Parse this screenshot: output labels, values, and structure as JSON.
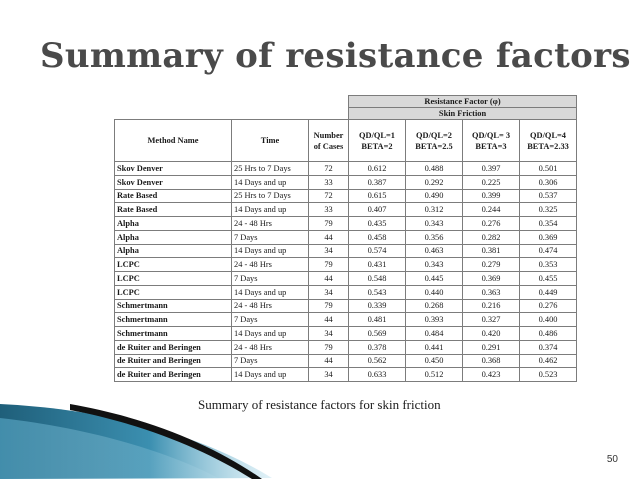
{
  "slide": {
    "title": "Summary of resistance factors",
    "caption": "Summary of resistance factors for skin friction",
    "page_number": "50"
  },
  "colors": {
    "title": "#4a4a4a",
    "header_fill": "#d9d9d9",
    "swoosh_dark": "#1f5f7a",
    "swoosh_light": "#9fd3e6",
    "swoosh_black": "#111111"
  },
  "table": {
    "group_header": "Resistance Factor (φ)",
    "sub_header": "Skin Friction",
    "col_method": "Method Name",
    "col_time": "Time",
    "col_cases_line1": "Number",
    "col_cases_line2": "of Cases",
    "col_r1_line1": "QD/QL=1",
    "col_r1_line2": "BETA=2",
    "col_r2_line1": "QD/QL=2",
    "col_r2_line2": "BETA=2.5",
    "col_r3_line1": "QD/QL= 3",
    "col_r3_line2": "BETA=3",
    "col_r4_line1": "QD/QL=4",
    "col_r4_line2": "BETA=2.33",
    "rows": [
      {
        "method": "Skov Denver",
        "time": "25 Hrs to 7 Days",
        "cases": "72",
        "r1": "0.612",
        "r2": "0.488",
        "r3": "0.397",
        "r4": "0.501"
      },
      {
        "method": "Skov Denver",
        "time": "14 Days and up",
        "cases": "33",
        "r1": "0.387",
        "r2": "0.292",
        "r3": "0.225",
        "r4": "0.306"
      },
      {
        "method": "Rate Based",
        "time": "25 Hrs to 7 Days",
        "cases": "72",
        "r1": "0.615",
        "r2": "0.490",
        "r3": "0.399",
        "r4": "0.537"
      },
      {
        "method": "Rate Based",
        "time": "14 Days and up",
        "cases": "33",
        "r1": "0.407",
        "r2": "0.312",
        "r3": "0.244",
        "r4": "0.325"
      },
      {
        "method": "Alpha",
        "time": "24 - 48 Hrs",
        "cases": "79",
        "r1": "0.435",
        "r2": "0.343",
        "r3": "0.276",
        "r4": "0.354"
      },
      {
        "method": "Alpha",
        "time": "7 Days",
        "cases": "44",
        "r1": "0.458",
        "r2": "0.356",
        "r3": "0.282",
        "r4": "0.369"
      },
      {
        "method": "Alpha",
        "time": "14 Days and up",
        "cases": "34",
        "r1": "0.574",
        "r2": "0.463",
        "r3": "0.381",
        "r4": "0.474"
      },
      {
        "method": "LCPC",
        "time": "24 - 48 Hrs",
        "cases": "79",
        "r1": "0.431",
        "r2": "0.343",
        "r3": "0.279",
        "r4": "0.353"
      },
      {
        "method": "LCPC",
        "time": "7 Days",
        "cases": "44",
        "r1": "0.548",
        "r2": "0.445",
        "r3": "0.369",
        "r4": "0.455"
      },
      {
        "method": "LCPC",
        "time": "14 Days and up",
        "cases": "34",
        "r1": "0.543",
        "r2": "0.440",
        "r3": "0.363",
        "r4": "0.449"
      },
      {
        "method": "Schmertmann",
        "time": "24 - 48 Hrs",
        "cases": "79",
        "r1": "0.339",
        "r2": "0.268",
        "r3": "0.216",
        "r4": "0.276"
      },
      {
        "method": "Schmertmann",
        "time": "7 Days",
        "cases": "44",
        "r1": "0.481",
        "r2": "0.393",
        "r3": "0.327",
        "r4": "0.400"
      },
      {
        "method": "Schmertmann",
        "time": "14 Days and up",
        "cases": "34",
        "r1": "0.569",
        "r2": "0.484",
        "r3": "0.420",
        "r4": "0.486"
      },
      {
        "method": "de Ruiter and Beringen",
        "time": "24 - 48 Hrs",
        "cases": "79",
        "r1": "0.378",
        "r2": "0.441",
        "r3": "0.291",
        "r4": "0.374"
      },
      {
        "method": "de Ruiter and Beringen",
        "time": "7 Days",
        "cases": "44",
        "r1": "0.562",
        "r2": "0.450",
        "r3": "0.368",
        "r4": "0.462"
      },
      {
        "method": "de Ruiter and Beringen",
        "time": "14 Days and up",
        "cases": "34",
        "r1": "0.633",
        "r2": "0.512",
        "r3": "0.423",
        "r4": "0.523"
      }
    ]
  }
}
